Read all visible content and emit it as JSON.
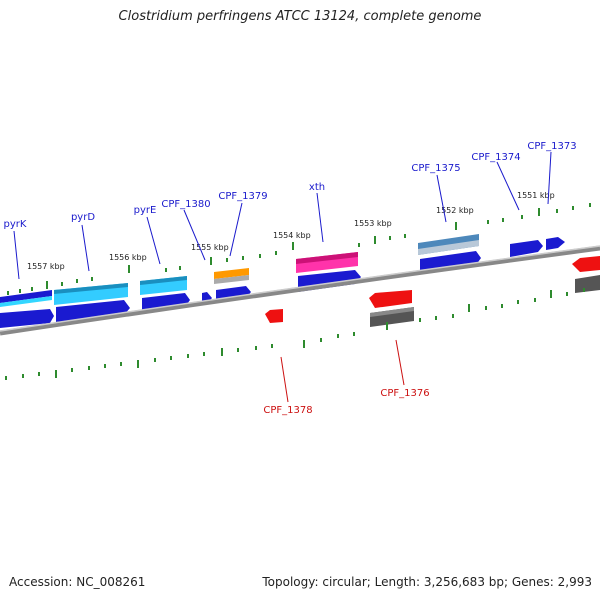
{
  "title": "Clostridium perfringens ATCC 13124, complete genome",
  "footer": {
    "accession": "Accession: NC_008261",
    "summary": "Topology: circular; Length: 3,256,683 bp; Genes: 2,993"
  },
  "colors": {
    "forward_label": "#1a1acc",
    "reverse_label": "#cc1111",
    "tick": "#2e8b2e",
    "backbone": "#888888"
  },
  "scale_labels": [
    "1557 kbp",
    "1556 kbp",
    "1555 kbp",
    "1554 kbp",
    "1553 kbp",
    "1552 kbp",
    "1551 kbp"
  ],
  "genes_forward": [
    "pyrK",
    "pyrD",
    "pyrE",
    "CPF_1380",
    "CPF_1379",
    "xth",
    "CPF_1375",
    "CPF_1374",
    "CPF_1373"
  ],
  "genes_reverse": [
    "CPF_1378",
    "CPF_1376"
  ]
}
